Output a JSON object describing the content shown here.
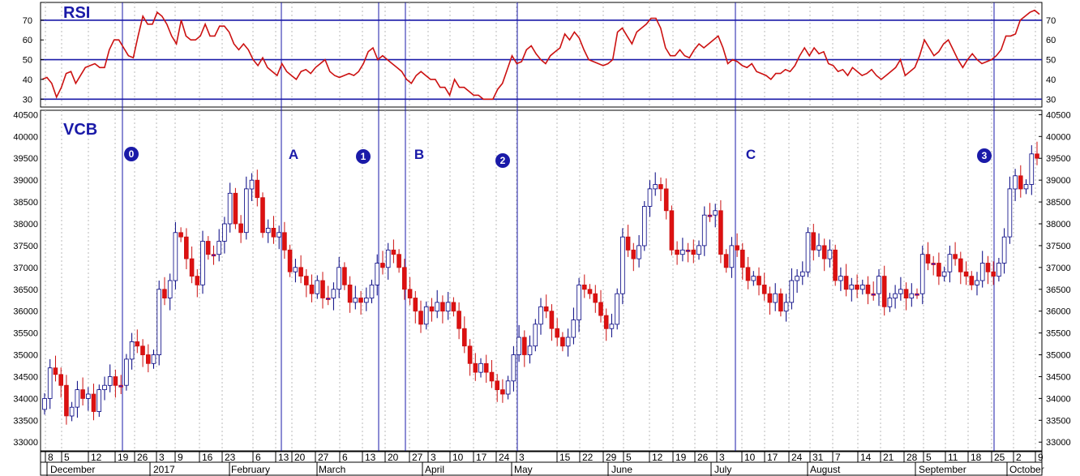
{
  "chart_data": [
    {
      "type": "line",
      "title": "RSI",
      "y_ticks": [
        30,
        40,
        50,
        60,
        70
      ],
      "ylim": [
        26,
        79
      ],
      "reference_lines": [
        30,
        50,
        70
      ],
      "series": [
        {
          "color": "#cc1111",
          "values": [
            40,
            41,
            38,
            31,
            36,
            43,
            44,
            38,
            42,
            46,
            47,
            48,
            46,
            46,
            55,
            60,
            60,
            56,
            52,
            51,
            62,
            72,
            68,
            68,
            74,
            72,
            68,
            62,
            58,
            70,
            62,
            60,
            60,
            62,
            68,
            62,
            62,
            67,
            67,
            64,
            58,
            55,
            58,
            55,
            50,
            47,
            51,
            46,
            44,
            42,
            48,
            44,
            42,
            40,
            44,
            45,
            43,
            46,
            48,
            50,
            44,
            42,
            41,
            42,
            43,
            42,
            44,
            48,
            54,
            56,
            50,
            52,
            50,
            48,
            46,
            44,
            40,
            38,
            42,
            44,
            42,
            40,
            40,
            36,
            36,
            32,
            40,
            36,
            36,
            34,
            32,
            32,
            30,
            30,
            30,
            35,
            38,
            45,
            52,
            48,
            49,
            55,
            57,
            53,
            50,
            48,
            52,
            54,
            56,
            63,
            60,
            64,
            61,
            55,
            50,
            49,
            48,
            47,
            48,
            50,
            64,
            66,
            62,
            58,
            64,
            66,
            68,
            71,
            71,
            66,
            56,
            52,
            52,
            55,
            52,
            51,
            55,
            58,
            56,
            58,
            60,
            62,
            56,
            48,
            50,
            49,
            47,
            46,
            48,
            44,
            43,
            42,
            40,
            43,
            43,
            45,
            44,
            47,
            52,
            56,
            52,
            56,
            53,
            54,
            48,
            47,
            44,
            45,
            42,
            46,
            44,
            42,
            43,
            45,
            42,
            40,
            42,
            44,
            46,
            50,
            42,
            44,
            46,
            52,
            60,
            56,
            52,
            54,
            58,
            60,
            55,
            50,
            46,
            50,
            53,
            50,
            48,
            49,
            50,
            52,
            55,
            62,
            62,
            63,
            70,
            72,
            74,
            75,
            73
          ]
        }
      ]
    },
    {
      "type": "candlestick",
      "title": "VCB",
      "y_ticks": [
        33000,
        33500,
        34000,
        34500,
        35000,
        35500,
        36000,
        36500,
        37000,
        37500,
        38000,
        38500,
        39000,
        39500,
        40000,
        40500
      ],
      "ylim": [
        32800,
        40600
      ],
      "x_ticks": [
        "8",
        "5",
        "12",
        "19",
        "26",
        "3",
        "9",
        "16",
        "23",
        "6",
        "13",
        "20",
        "27",
        "6",
        "13",
        "20",
        "27",
        "3",
        "10",
        "17",
        "24",
        "3",
        "15",
        "22",
        "29",
        "5",
        "12",
        "19",
        "26",
        "3",
        "10",
        "17",
        "24",
        "31",
        "7",
        "14",
        "21",
        "28",
        "5",
        "11",
        "18",
        "25",
        "2",
        "9"
      ],
      "months": [
        "December",
        "2017",
        "February",
        "March",
        "April",
        "May",
        "June",
        "July",
        "August",
        "September",
        "October"
      ],
      "wave_labels": [
        "0",
        "A",
        "1",
        "B",
        "2",
        "C",
        "3"
      ],
      "up_color": "#ffffff",
      "down_color": "#dd1111",
      "doji_color": "#1a1aee",
      "closes": [
        34000,
        34700,
        34550,
        34300,
        33600,
        33800,
        34200,
        34000,
        34100,
        33700,
        34200,
        34300,
        34500,
        34300,
        34300,
        34900,
        35300,
        35200,
        35000,
        34800,
        35000,
        36500,
        36300,
        36700,
        37800,
        37700,
        37200,
        36800,
        36600,
        37600,
        37300,
        37300,
        37600,
        38000,
        38700,
        38000,
        37800,
        38800,
        39000,
        38600,
        37800,
        37900,
        37700,
        37800,
        37400,
        36900,
        37000,
        36800,
        36600,
        36400,
        36700,
        36300,
        36300,
        36500,
        37000,
        36600,
        36200,
        36300,
        36200,
        36300,
        36600,
        37100,
        37000,
        37400,
        37300,
        37000,
        36500,
        36300,
        36000,
        35700,
        36100,
        36000,
        36200,
        36000,
        36200,
        36000,
        35600,
        35200,
        34800,
        34600,
        34800,
        34600,
        34400,
        34200,
        34100,
        34400,
        35000,
        35400,
        35000,
        35200,
        35700,
        36100,
        36000,
        35600,
        35400,
        35200,
        35400,
        35800,
        36600,
        36500,
        36400,
        36200,
        35900,
        35600,
        35700,
        36400,
        37700,
        37400,
        37200,
        37500,
        38400,
        38800,
        38900,
        38800,
        38300,
        37400,
        37300,
        37400,
        37400,
        37300,
        37500,
        38200,
        38200,
        38300,
        37300,
        37000,
        37500,
        37400,
        37000,
        36700,
        36800,
        36600,
        36400,
        36200,
        36400,
        36000,
        36200,
        36700,
        36800,
        36900,
        37800,
        37400,
        37500,
        37200,
        37400,
        36700,
        36800,
        36500,
        36600,
        36500,
        36600,
        36400,
        36400,
        36800,
        36100,
        36300,
        36400,
        36500,
        36300,
        36400,
        36400,
        37300,
        37100,
        37100,
        36800,
        36900,
        37300,
        37200,
        36900,
        36800,
        36600,
        36700,
        37100,
        36900,
        36800,
        37100,
        37700,
        38800,
        39100,
        38800,
        38900,
        39600,
        39500
      ]
    }
  ]
}
